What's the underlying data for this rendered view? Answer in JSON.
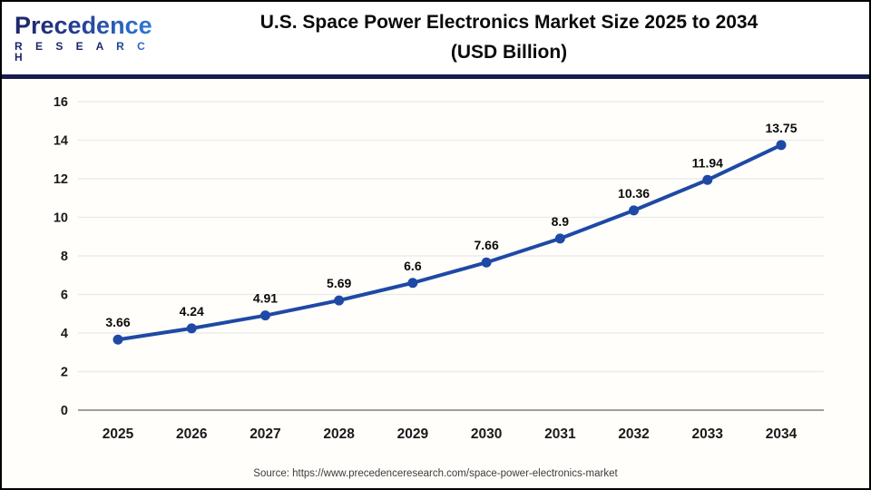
{
  "header": {
    "logo_line1": "Precedence",
    "logo_line2": "R E S E A R C H",
    "title_line1": "U.S. Space Power Electronics Market Size 2025 to 2034",
    "title_line2": "(USD Billion)"
  },
  "footer": {
    "source": "Source: https://www.precedenceresearch.com/space-power-electronics-market"
  },
  "colors": {
    "line": "#1e49a5",
    "marker": "#1e49a5",
    "divider": "#171b4d",
    "grid": "#ebebeb",
    "zero_line": "#9e9e9e",
    "tick_text": "#1a1a1a",
    "data_label": "#0a0a0a",
    "logo_navy": "#1b2668",
    "logo_blue": "#2f7ddd"
  },
  "chart_data": {
    "type": "line",
    "title": "U.S. Space Power Electronics Market Size 2025 to 2034 (USD Billion)",
    "categories": [
      "2025",
      "2026",
      "2027",
      "2028",
      "2029",
      "2030",
      "2031",
      "2032",
      "2033",
      "2034"
    ],
    "values": [
      3.66,
      4.24,
      4.91,
      5.69,
      6.6,
      7.66,
      8.9,
      10.36,
      11.94,
      13.75
    ],
    "value_labels": [
      "3.66",
      "4.24",
      "4.91",
      "5.69",
      "6.6",
      "7.66",
      "8.9",
      "10.36",
      "11.94",
      "13.75"
    ],
    "series_name": "U.S. Space Power Electronics Market Size (USD Billion)",
    "xlabel": "",
    "ylabel": "",
    "ylim": [
      0,
      16
    ],
    "ytick_step": 2,
    "yticks": [
      0,
      2,
      4,
      6,
      8,
      10,
      12,
      14,
      16
    ],
    "grid": true,
    "legend": "none",
    "marker": "circle"
  }
}
